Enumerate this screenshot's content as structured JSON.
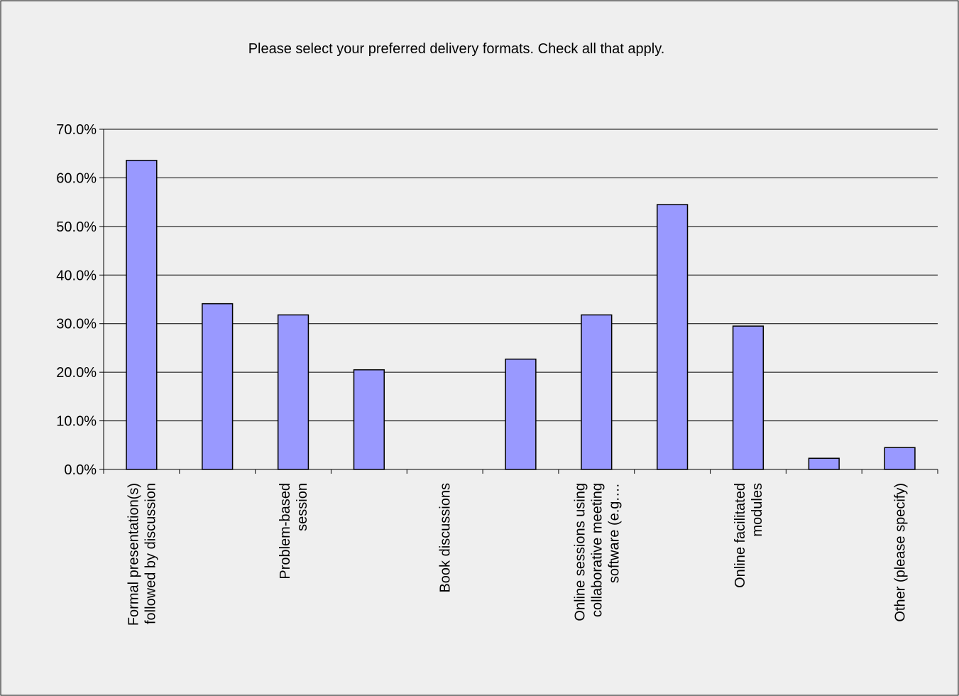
{
  "chart_data": {
    "type": "bar",
    "title": "Please select your preferred delivery formats. Check all that apply.",
    "categories": [
      [
        "Formal presentation(s)",
        "followed by discussion"
      ],
      null,
      [
        "Problem-based",
        "session"
      ],
      null,
      [
        "Book discussions"
      ],
      null,
      [
        "Online sessions using",
        "collaborative meeting",
        "software (e.g.…"
      ],
      null,
      [
        "Online facilitated",
        "modules"
      ],
      null,
      [
        "Other (please specify)"
      ]
    ],
    "values": [
      63.6,
      34.1,
      31.8,
      20.5,
      0,
      22.7,
      31.8,
      54.5,
      29.5,
      2.3,
      4.5
    ],
    "color": "#9999ff",
    "ylim": [
      0,
      70
    ],
    "yticks": [
      {
        "value": 0,
        "label": "0.0%"
      },
      {
        "value": 10,
        "label": "10.0%"
      },
      {
        "value": 20,
        "label": "20.0%"
      },
      {
        "value": 30,
        "label": "30.0%"
      },
      {
        "value": 40,
        "label": "40.0%"
      },
      {
        "value": 50,
        "label": "50.0%"
      },
      {
        "value": 60,
        "label": "60.0%"
      },
      {
        "value": 70,
        "label": "70.0%"
      }
    ],
    "grid": true
  }
}
